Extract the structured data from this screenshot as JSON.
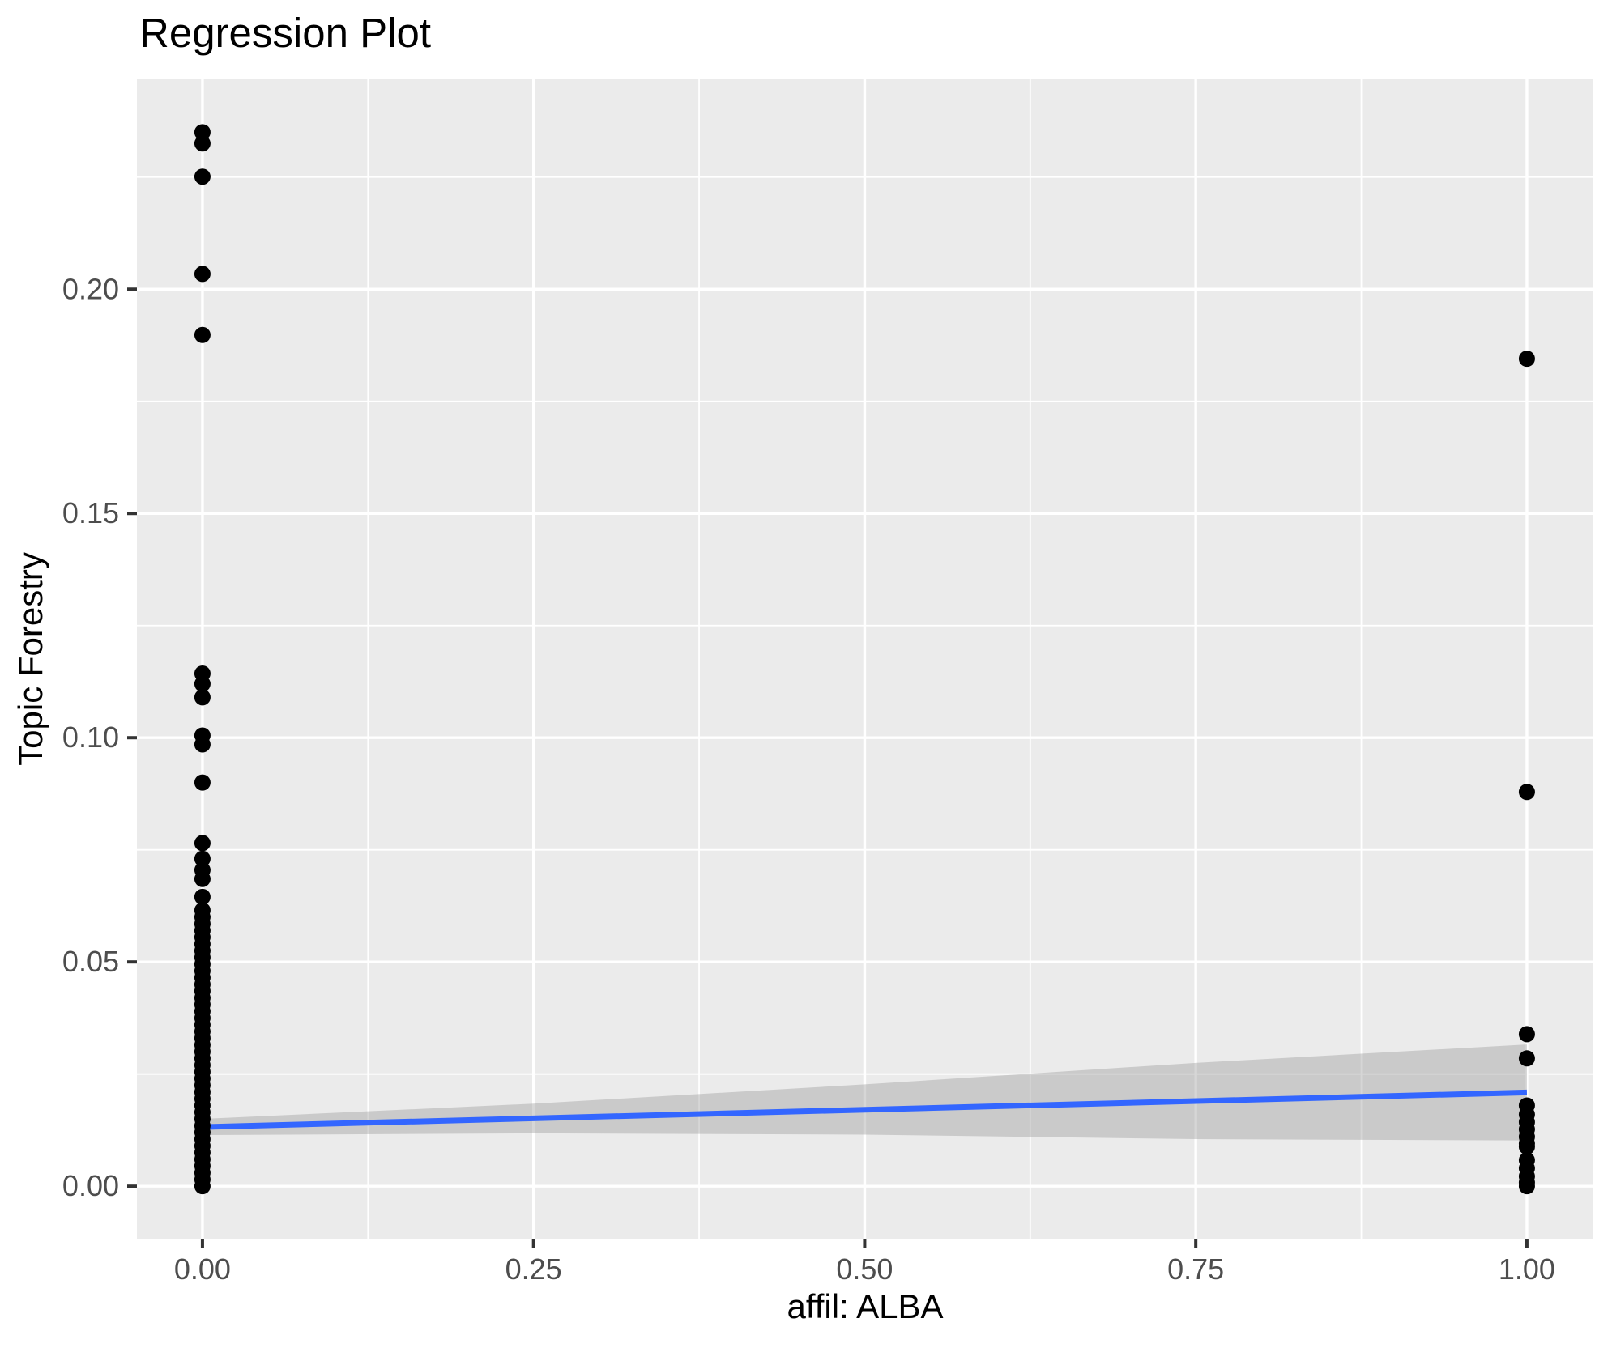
{
  "chart_data": {
    "type": "scatter",
    "title": "Regression Plot",
    "xlabel": "affil: ALBA",
    "ylabel": "Topic Forestry",
    "xlim": [
      -0.0495,
      1.0502
    ],
    "ylim": [
      -0.0117,
      0.2468
    ],
    "grid": {
      "major": true,
      "minor": true
    },
    "legend_position": "none",
    "x_ticks": [
      {
        "label": "0.00",
        "value": 0.0
      },
      {
        "label": "0.25",
        "value": 0.25
      },
      {
        "label": "0.50",
        "value": 0.5
      },
      {
        "label": "0.75",
        "value": 0.75
      },
      {
        "label": "1.00",
        "value": 1.0
      }
    ],
    "y_ticks": [
      {
        "label": "0.00",
        "value": 0.0
      },
      {
        "label": "0.05",
        "value": 0.05
      },
      {
        "label": "0.10",
        "value": 0.1
      },
      {
        "label": "0.15",
        "value": 0.15
      },
      {
        "label": "0.20",
        "value": 0.2
      }
    ],
    "x_minor": [
      0.125,
      0.375,
      0.625,
      0.875
    ],
    "y_minor": [
      0.025,
      0.075,
      0.125,
      0.175,
      0.225
    ],
    "series": [
      {
        "name": "affil ALBA = 0",
        "x": 0,
        "y": [
          0.0,
          0.0015,
          0.003,
          0.0045,
          0.006,
          0.0075,
          0.009,
          0.0105,
          0.012,
          0.0135,
          0.015,
          0.0165,
          0.018,
          0.0195,
          0.021,
          0.0225,
          0.024,
          0.0255,
          0.027,
          0.0285,
          0.03,
          0.0315,
          0.033,
          0.0345,
          0.036,
          0.0375,
          0.039,
          0.0405,
          0.042,
          0.0435,
          0.045,
          0.0465,
          0.048,
          0.0495,
          0.051,
          0.0525,
          0.054,
          0.0555,
          0.057,
          0.0585,
          0.06,
          0.0615,
          0.0645,
          0.0685,
          0.0705,
          0.073,
          0.0765,
          0.09,
          0.0985,
          0.1005,
          0.109,
          0.112,
          0.1143,
          0.1898,
          0.2034,
          0.2251,
          0.2325,
          0.235
        ]
      },
      {
        "name": "affil ALBA = 1",
        "x": 1,
        "y": [
          0.0,
          0.0008,
          0.0022,
          0.004,
          0.0058,
          0.0088,
          0.0095,
          0.011,
          0.0127,
          0.0143,
          0.016,
          0.018,
          0.0285,
          0.0339,
          0.0879,
          0.1845
        ]
      }
    ],
    "regression_line": {
      "x": [
        0,
        1
      ],
      "y": [
        0.0132,
        0.0209
      ]
    },
    "ci_band": {
      "x": [
        0,
        0.25,
        0.5,
        0.75,
        1
      ],
      "upper": [
        0.015,
        0.0184,
        0.0227,
        0.0275,
        0.0316
      ],
      "lower": [
        0.0114,
        0.0118,
        0.0115,
        0.0105,
        0.0102
      ]
    },
    "colors": {
      "panel_background": "#EBEBEB",
      "grid_line": "#FFFFFF",
      "point": "#000000",
      "regression_line": "#3366FF",
      "ci_band": "#999999",
      "ci_band_opacity": 0.4,
      "tick_mark": "#333333",
      "tick_text": "#4D4D4D",
      "title_text": "#000000"
    }
  }
}
